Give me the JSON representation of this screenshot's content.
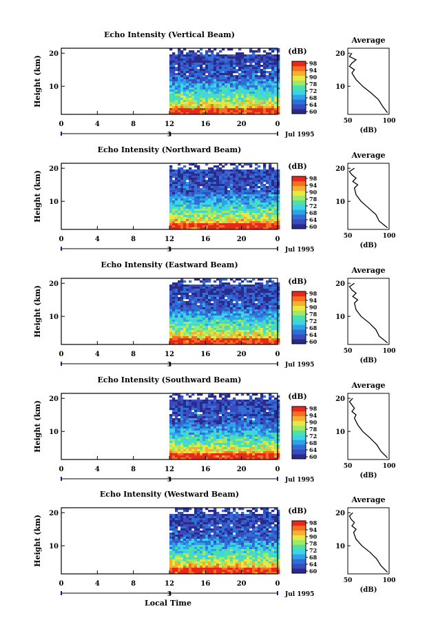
{
  "figure": {
    "xlabel": "Local Time",
    "date_label": "Jul 1995",
    "date_marker": "3",
    "colorbar_unit": "(dB)",
    "avg_title": "Average",
    "avg_xlabel": "(dB)",
    "avg_xticks": [
      "50",
      "100"
    ],
    "avg_xlim": [
      50,
      100
    ],
    "ylabel": "Height (km)",
    "yticks": [
      "10",
      "20"
    ],
    "ylim": [
      1.5,
      21.5
    ],
    "xticks": [
      "0",
      "4",
      "8",
      "12",
      "16",
      "20",
      "0"
    ],
    "xlim": [
      0,
      24
    ],
    "colorbar_ticks": [
      "98",
      "94",
      "90",
      "78",
      "72",
      "68",
      "64",
      "60"
    ],
    "colorbar_range": [
      60,
      98
    ]
  },
  "colormap": [
    "#2a2a8a",
    "#3a4bbd",
    "#2f6fd8",
    "#2fa3e8",
    "#3fd3e8",
    "#4fe0a8",
    "#9ee86a",
    "#e8e840",
    "#f4b030",
    "#f47020",
    "#e82818"
  ],
  "chart_data": [
    {
      "type": "heatmap",
      "title": "Echo Intensity (Vertical Beam)",
      "data_start_hour": 12,
      "avg_profile": {
        "height_km": [
          2,
          4,
          6,
          8,
          10,
          12,
          14,
          15,
          16,
          17,
          18,
          19,
          20
        ],
        "db": [
          98,
          92,
          87,
          78,
          68,
          60,
          55,
          58,
          52,
          55,
          60,
          52,
          55
        ]
      }
    },
    {
      "type": "heatmap",
      "title": "Echo Intensity (Northward Beam)",
      "data_start_hour": 12,
      "avg_profile": {
        "height_km": [
          2,
          4,
          6,
          8,
          10,
          12,
          14,
          15,
          16,
          17,
          18,
          19,
          20
        ],
        "db": [
          98,
          88,
          84,
          75,
          66,
          60,
          58,
          62,
          56,
          60,
          55,
          52,
          58
        ]
      }
    },
    {
      "type": "heatmap",
      "title": "Echo Intensity (Eastward Beam)",
      "data_start_hour": 12,
      "avg_profile": {
        "height_km": [
          2,
          4,
          6,
          8,
          10,
          12,
          14,
          15,
          16,
          17,
          18,
          19,
          20
        ],
        "db": [
          98,
          88,
          84,
          76,
          66,
          60,
          58,
          62,
          56,
          60,
          55,
          52,
          58
        ]
      }
    },
    {
      "type": "heatmap",
      "title": "Echo Intensity (Southward Beam)",
      "data_start_hour": 12,
      "avg_profile": {
        "height_km": [
          2,
          4,
          6,
          8,
          10,
          12,
          14,
          15,
          16,
          17,
          18,
          19,
          20
        ],
        "db": [
          98,
          90,
          85,
          77,
          68,
          62,
          58,
          60,
          55,
          58,
          55,
          52,
          56
        ]
      }
    },
    {
      "type": "heatmap",
      "title": "Echo Intensity (Westward Beam)",
      "data_start_hour": 12,
      "avg_profile": {
        "height_km": [
          2,
          4,
          6,
          8,
          10,
          12,
          14,
          15,
          16,
          17,
          18,
          19,
          20
        ],
        "db": [
          98,
          90,
          85,
          77,
          67,
          60,
          57,
          60,
          55,
          58,
          54,
          52,
          56
        ]
      }
    }
  ]
}
